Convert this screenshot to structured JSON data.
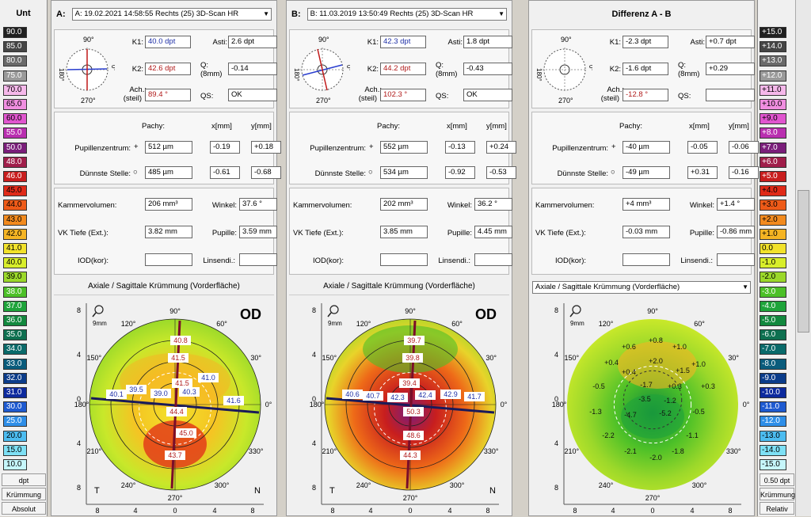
{
  "left_scale": {
    "title": "Unt",
    "items": [
      {
        "v": "90.0",
        "c": "#202020"
      },
      {
        "v": "85.0",
        "c": "#454545"
      },
      {
        "v": "80.0",
        "c": "#6a6a6a"
      },
      {
        "v": "75.0",
        "c": "#9a9a9a"
      },
      {
        "v": "70.0",
        "c": "#f5b8ea"
      },
      {
        "v": "65.0",
        "c": "#f08ee0"
      },
      {
        "v": "60.0",
        "c": "#e055cf"
      },
      {
        "v": "55.0",
        "c": "#b92fb0"
      },
      {
        "v": "50.0",
        "c": "#7a1e7a"
      },
      {
        "v": "48.0",
        "c": "#a01e4a"
      },
      {
        "v": "46.0",
        "c": "#c81e1e"
      },
      {
        "v": "45.0",
        "c": "#e02a18"
      },
      {
        "v": "44.0",
        "c": "#ee5a18"
      },
      {
        "v": "43.0",
        "c": "#f28a1e"
      },
      {
        "v": "42.0",
        "c": "#f5b423"
      },
      {
        "v": "41.0",
        "c": "#f2e22a"
      },
      {
        "v": "40.0",
        "c": "#d8ee2a"
      },
      {
        "v": "39.0",
        "c": "#9bd82a"
      },
      {
        "v": "38.0",
        "c": "#4cc028"
      },
      {
        "v": "37.0",
        "c": "#1ea43a"
      },
      {
        "v": "36.0",
        "c": "#12883e"
      },
      {
        "v": "35.0",
        "c": "#0e7050"
      },
      {
        "v": "34.0",
        "c": "#0a6a6a"
      },
      {
        "v": "33.0",
        "c": "#0a5c7c"
      },
      {
        "v": "32.0",
        "c": "#0b3c8a"
      },
      {
        "v": "31.0",
        "c": "#0d2a9e"
      },
      {
        "v": "30.0",
        "c": "#1e5ad0"
      },
      {
        "v": "25.0",
        "c": "#2e8ee8"
      },
      {
        "v": "20.0",
        "c": "#4cbcf0"
      },
      {
        "v": "15.0",
        "c": "#7ee0f5"
      },
      {
        "v": "10.0",
        "c": "#c6f6fb"
      }
    ],
    "unit": "dpt",
    "mode": "Krümmung",
    "type": "Absolut"
  },
  "right_scale": {
    "title": "",
    "items": [
      {
        "v": "+15.0",
        "c": "#202020"
      },
      {
        "v": "+14.0",
        "c": "#454545"
      },
      {
        "v": "+13.0",
        "c": "#6a6a6a"
      },
      {
        "v": "+12.0",
        "c": "#9a9a9a"
      },
      {
        "v": "+11.0",
        "c": "#f5b8ea"
      },
      {
        "v": "+10.0",
        "c": "#f08ee0"
      },
      {
        "v": "+9.0",
        "c": "#e055cf"
      },
      {
        "v": "+8.0",
        "c": "#b92fb0"
      },
      {
        "v": "+7.0",
        "c": "#7a1e7a"
      },
      {
        "v": "+6.0",
        "c": "#a01e4a"
      },
      {
        "v": "+5.0",
        "c": "#c81e1e"
      },
      {
        "v": "+4.0",
        "c": "#e02a18"
      },
      {
        "v": "+3.0",
        "c": "#ee5a18"
      },
      {
        "v": "+2.0",
        "c": "#f28a1e"
      },
      {
        "v": "+1.0",
        "c": "#f5b423"
      },
      {
        "v": "0.0",
        "c": "#f2e22a"
      },
      {
        "v": "-1.0",
        "c": "#d8ee2a"
      },
      {
        "v": "-2.0",
        "c": "#9bd82a"
      },
      {
        "v": "-3.0",
        "c": "#4cc028"
      },
      {
        "v": "-4.0",
        "c": "#1ea43a"
      },
      {
        "v": "-5.0",
        "c": "#12883e"
      },
      {
        "v": "-6.0",
        "c": "#0e7050"
      },
      {
        "v": "-7.0",
        "c": "#0a6a6a"
      },
      {
        "v": "-8.0",
        "c": "#0a5c7c"
      },
      {
        "v": "-9.0",
        "c": "#0b3c8a"
      },
      {
        "v": "-10.0",
        "c": "#0d2a9e"
      },
      {
        "v": "-11.0",
        "c": "#1e5ad0"
      },
      {
        "v": "-12.0",
        "c": "#2e8ee8"
      },
      {
        "v": "-13.0",
        "c": "#4cbcf0"
      },
      {
        "v": "-14.0",
        "c": "#7ee0f5"
      },
      {
        "v": "-15.0",
        "c": "#c6f6fb"
      }
    ],
    "unit": "0.50 dpt",
    "mode": "Krümmung",
    "type": "Relativ"
  },
  "labels": {
    "k1": "K1:",
    "k2": "K2:",
    "asti": "Asti:",
    "q": "Q:",
    "q8": "(8mm)",
    "ach": "Ach.:",
    "steil": "(steil)",
    "qs": "QS:",
    "pachy": "Pachy:",
    "xmm": "x[mm]",
    "ymm": "y[mm]",
    "pupc": "Pupillenzentrum:",
    "thin": "Dünnste Stelle:",
    "kv": "Kammervolumen:",
    "winkel": "Winkel:",
    "vk": "VK Tiefe (Ext.):",
    "pup": "Pupille:",
    "iod": "IOD(kor):",
    "linse": "Linsendi.:",
    "a90": "90°",
    "a180": "180°",
    "a270": "270°",
    "ang0": "0°",
    "mapdeg": {
      "d90": "90°",
      "d120": "120°",
      "d60": "60°",
      "d150": "150°",
      "d30": "30°",
      "d180": "180°",
      "d0": "0°",
      "d210": "210°",
      "d330": "330°",
      "d240": "240°",
      "d300": "300°",
      "d270": "270°"
    },
    "tick8": "8",
    "tick4": "4",
    "tick0": "0",
    "zoom": "9mm",
    "T": "T",
    "N": "N",
    "od": "OD"
  },
  "panels": [
    {
      "id": "A",
      "hdr": "A:",
      "combo": "A: 19.02.2021  14:58:55  Rechts  (25) 3D-Scan HR",
      "k1": "40.0 dpt",
      "k2": "42.6 dpt",
      "asti": "2.6 dpt",
      "q": "-0.14",
      "ach": "89.4 °",
      "qs": "OK",
      "pc_pachy": "512 µm",
      "pc_x": "-0.19",
      "pc_y": "+0.18",
      "th_pachy": "485 µm",
      "th_x": "-0.61",
      "th_y": "-0.68",
      "kv": "206 mm³",
      "winkel": "37.6 °",
      "vk": "3.82 mm",
      "pupille": "3.59 mm",
      "iod": "",
      "linse": "",
      "maptitle": "Axiale / Sagittale Krümmung (Vorderfläche)",
      "mapvals": [
        "40.8",
        "41.5",
        "40.1",
        "39.5",
        "39.0",
        "40.3",
        "41.0",
        "41.6",
        "41.5",
        "44.4",
        "45.0",
        "43.7"
      ]
    },
    {
      "id": "B",
      "hdr": "B:",
      "combo": "B: 11.03.2019  13:50:49  Rechts  (25) 3D-Scan HR",
      "k1": "42.3 dpt",
      "k2": "44.2 dpt",
      "asti": "1.8 dpt",
      "q": "-0.43",
      "ach": "102.3 °",
      "qs": "OK",
      "pc_pachy": "552 µm",
      "pc_x": "-0.13",
      "pc_y": "+0.24",
      "th_pachy": "534 µm",
      "th_x": "-0.92",
      "th_y": "-0.53",
      "kv": "202 mm³",
      "winkel": "36.2 °",
      "vk": "3.85 mm",
      "pupille": "4.45 mm",
      "iod": "",
      "linse": "",
      "maptitle": "Axiale / Sagittale Krümmung (Vorderfläche)",
      "mapvals": [
        "39.7",
        "39.8",
        "40.6",
        "40.7",
        "42.3",
        "42.4",
        "42.9",
        "41.7",
        "39.4",
        "50.3",
        "48.6",
        "44.3"
      ]
    },
    {
      "id": "C",
      "hdr": "Differenz A - B",
      "k1": "-2.3 dpt",
      "k2": "-1.6 dpt",
      "asti": "+0.7 dpt",
      "q": "+0.29",
      "ach": "-12.8 °",
      "qs": "",
      "pc_pachy": "-40 µm",
      "pc_x": "-0.05",
      "pc_y": "-0.06",
      "th_pachy": "-49 µm",
      "th_x": "+0.31",
      "th_y": "-0.16",
      "kv": "+4 mm³",
      "winkel": "+1.4 °",
      "vk": "-0.03 mm",
      "pupille": "-0.86 mm",
      "iod": "",
      "linse": "",
      "maptitle": "Axiale / Sagittale Krümmung (Vorderfläche)",
      "mapvals": [
        "+0.8",
        "+0.6",
        "+1.0",
        "+0.4",
        "+2.0",
        "+1.5",
        "+1.0",
        "+0.4",
        "-0.5",
        "-1.7",
        "+0.3",
        "+0.3",
        "-1.3",
        "-3.5",
        "-1.2",
        "-0.5",
        "-4.7",
        "-5.2",
        "-2.2",
        "-1.1",
        "-2.1",
        "-2.0",
        "-1.8"
      ]
    }
  ]
}
